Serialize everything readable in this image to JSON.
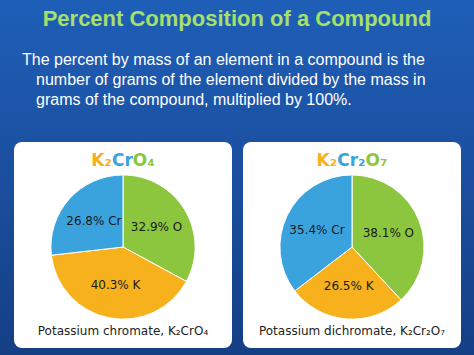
{
  "title": "Percent Composition of a Compound",
  "text": "The percent by mass of an element in a compound is the number of grams of the element divided by the mass in grams of the compound, multiplied by 100%.",
  "chart_data": [
    {
      "type": "pie",
      "title": "K₂CrO₄",
      "subtitle": "Potassium chromate, K₂CrO₄",
      "categories": [
        "O",
        "K",
        "Cr"
      ],
      "values": [
        32.9,
        40.3,
        26.8
      ],
      "value_labels": [
        "32.9% O",
        "40.3% K",
        "26.8% Cr"
      ],
      "colors": [
        "#8cc63e",
        "#f6b11c",
        "#3aa3de"
      ],
      "data_labels": true
    },
    {
      "type": "pie",
      "title": "K₂Cr₂O₇",
      "subtitle": "Potassium dichromate, K₂Cr₂O₇",
      "categories": [
        "O",
        "K",
        "Cr"
      ],
      "values": [
        38.1,
        26.5,
        35.4
      ],
      "value_labels": [
        "38.1% O",
        "26.5% K",
        "35.4% Cr"
      ],
      "colors": [
        "#8cc63e",
        "#f6b11c",
        "#3aa3de"
      ],
      "data_labels": true
    }
  ]
}
